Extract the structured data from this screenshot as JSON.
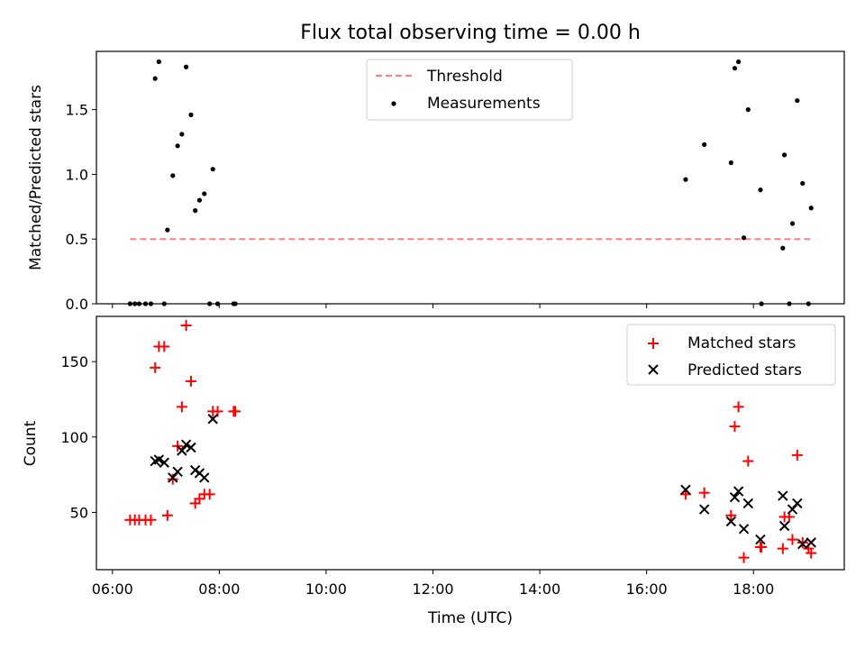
{
  "chart_data": [
    {
      "type": "scatter",
      "title": "Flux total observing time = 0.00 h",
      "xlabel": "",
      "ylabel": "Matched/Predicted stars",
      "ylim": [
        0,
        1.95
      ],
      "yticks": [
        0.0,
        0.5,
        1.0,
        1.5
      ],
      "ytick_labels": [
        "0.0",
        "0.5",
        "1.0",
        "1.5"
      ],
      "xlim_hours": [
        5.7,
        19.7
      ],
      "legend_position": "top-center",
      "threshold": {
        "name": "Threshold",
        "value": 0.5,
        "x_range_hours": [
          6.33,
          19.07
        ],
        "color": "#ff8080",
        "style": "dashed"
      },
      "series": [
        {
          "name": "Measurements",
          "color": "#000000",
          "marker": "dot",
          "points": [
            [
              6.33,
              0.0
            ],
            [
              6.42,
              0.0
            ],
            [
              6.5,
              0.0
            ],
            [
              6.62,
              0.0
            ],
            [
              6.72,
              0.0
            ],
            [
              6.97,
              0.0
            ],
            [
              6.8,
              1.74
            ],
            [
              6.87,
              1.87
            ],
            [
              7.03,
              0.57
            ],
            [
              7.13,
              0.99
            ],
            [
              7.22,
              1.22
            ],
            [
              7.3,
              1.31
            ],
            [
              7.38,
              1.83
            ],
            [
              7.47,
              1.46
            ],
            [
              7.55,
              0.72
            ],
            [
              7.63,
              0.8
            ],
            [
              7.72,
              0.85
            ],
            [
              7.88,
              1.04
            ],
            [
              7.82,
              0.0
            ],
            [
              7.97,
              0.0
            ],
            [
              8.27,
              0.0
            ],
            [
              8.3,
              0.0
            ],
            [
              16.73,
              0.96
            ],
            [
              17.08,
              1.23
            ],
            [
              17.58,
              1.09
            ],
            [
              17.65,
              1.82
            ],
            [
              17.72,
              1.87
            ],
            [
              17.82,
              0.51
            ],
            [
              17.9,
              1.5
            ],
            [
              18.13,
              0.88
            ],
            [
              18.15,
              0.0
            ],
            [
              18.55,
              0.43
            ],
            [
              18.58,
              1.15
            ],
            [
              18.67,
              0.0
            ],
            [
              18.73,
              0.62
            ],
            [
              18.82,
              1.57
            ],
            [
              18.92,
              0.93
            ],
            [
              19.03,
              0.0
            ],
            [
              19.08,
              0.74
            ]
          ]
        }
      ]
    },
    {
      "type": "scatter",
      "title": "",
      "xlabel": "Time (UTC)",
      "ylabel": "Count",
      "ylim": [
        12,
        180
      ],
      "yticks": [
        50,
        100,
        150
      ],
      "ytick_labels": [
        "50",
        "100",
        "150"
      ],
      "xlim_hours": [
        5.7,
        19.7
      ],
      "xticks_hours": [
        6,
        8,
        10,
        12,
        14,
        16,
        18
      ],
      "xtick_labels": [
        "06:00",
        "08:00",
        "10:00",
        "12:00",
        "14:00",
        "16:00",
        "18:00"
      ],
      "legend_position": "top-right",
      "series": [
        {
          "name": "Matched stars",
          "color": "#ff0000",
          "marker": "plus",
          "points": [
            [
              6.33,
              45
            ],
            [
              6.42,
              45
            ],
            [
              6.5,
              45
            ],
            [
              6.62,
              45
            ],
            [
              6.72,
              45
            ],
            [
              6.8,
              146
            ],
            [
              6.87,
              160
            ],
            [
              6.97,
              160
            ],
            [
              7.03,
              48
            ],
            [
              7.13,
              72
            ],
            [
              7.22,
              94
            ],
            [
              7.3,
              120
            ],
            [
              7.38,
              174
            ],
            [
              7.47,
              137
            ],
            [
              7.55,
              56
            ],
            [
              7.63,
              59
            ],
            [
              7.72,
              62
            ],
            [
              7.82,
              62
            ],
            [
              7.88,
              117
            ],
            [
              7.97,
              117
            ],
            [
              8.27,
              117
            ],
            [
              8.3,
              117
            ],
            [
              16.73,
              62
            ],
            [
              17.08,
              63
            ],
            [
              17.58,
              48
            ],
            [
              17.65,
              107
            ],
            [
              17.72,
              120
            ],
            [
              17.82,
              20
            ],
            [
              17.9,
              84
            ],
            [
              18.13,
              27
            ],
            [
              18.15,
              27
            ],
            [
              18.55,
              26
            ],
            [
              18.58,
              47
            ],
            [
              18.67,
              47
            ],
            [
              18.73,
              32
            ],
            [
              18.82,
              88
            ],
            [
              18.92,
              30
            ],
            [
              19.03,
              26
            ],
            [
              19.08,
              23
            ]
          ]
        },
        {
          "name": "Predicted stars",
          "color": "#000000",
          "marker": "x",
          "points": [
            [
              6.8,
              84
            ],
            [
              6.87,
              85
            ],
            [
              6.97,
              83
            ],
            [
              7.13,
              73
            ],
            [
              7.22,
              77
            ],
            [
              7.3,
              91
            ],
            [
              7.38,
              95
            ],
            [
              7.47,
              93
            ],
            [
              7.55,
              78
            ],
            [
              7.63,
              76
            ],
            [
              7.72,
              73
            ],
            [
              7.88,
              112
            ],
            [
              16.73,
              65
            ],
            [
              17.08,
              52
            ],
            [
              17.58,
              44
            ],
            [
              17.65,
              60
            ],
            [
              17.72,
              64
            ],
            [
              17.82,
              39
            ],
            [
              17.9,
              56
            ],
            [
              18.13,
              32
            ],
            [
              18.55,
              61
            ],
            [
              18.58,
              41
            ],
            [
              18.73,
              52
            ],
            [
              18.82,
              56
            ],
            [
              18.92,
              29
            ],
            [
              19.08,
              30
            ]
          ]
        }
      ]
    }
  ]
}
